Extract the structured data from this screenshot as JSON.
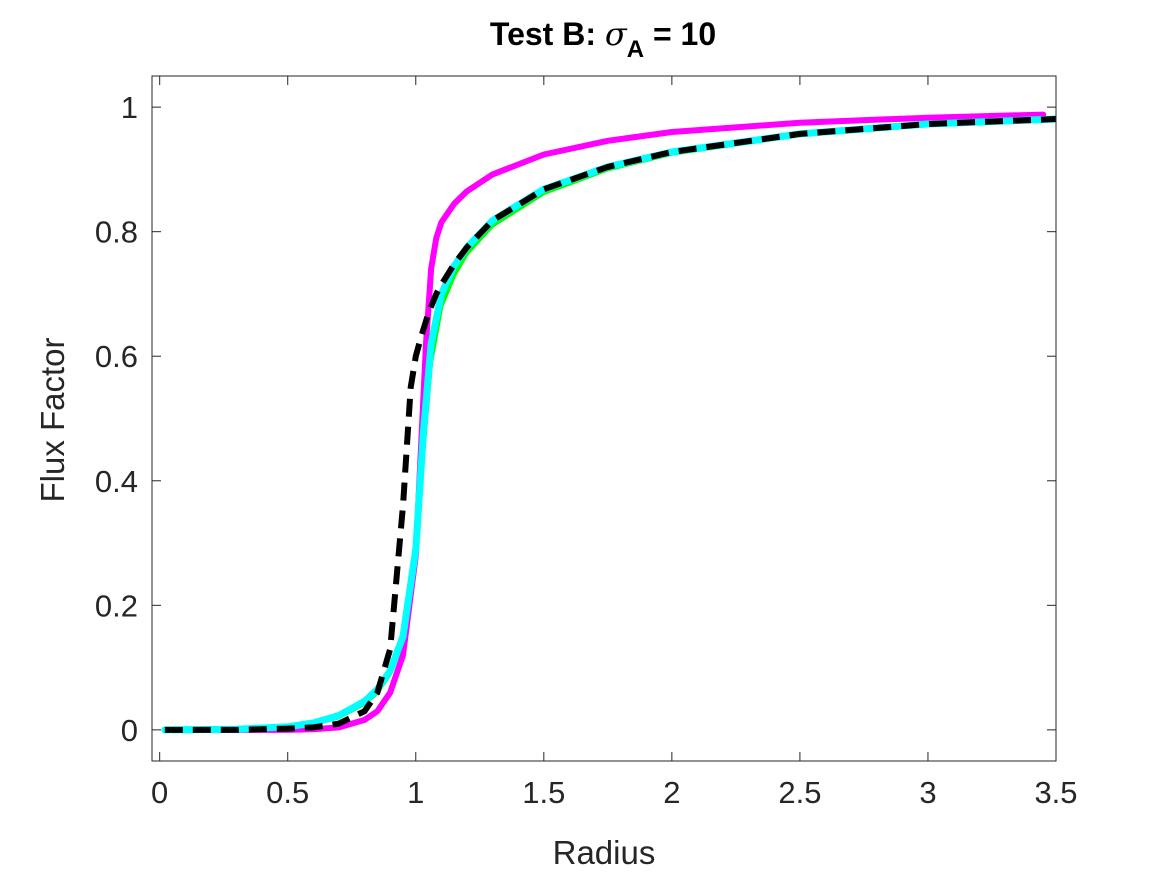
{
  "chart_data": {
    "type": "line",
    "title": {
      "prefix": "Test B: ",
      "symbol": "σ",
      "subscript": "A",
      "suffix": " = 10"
    },
    "xlabel": "Radius",
    "ylabel": "Flux Factor",
    "xlim": [
      -0.03,
      3.5
    ],
    "ylim": [
      -0.05,
      1.05
    ],
    "xticks": [
      0,
      0.5,
      1,
      1.5,
      2,
      2.5,
      3,
      3.5
    ],
    "xtick_labels": [
      "0",
      "0.5",
      "1",
      "1.5",
      "2",
      "2.5",
      "3",
      "3.5"
    ],
    "yticks": [
      0,
      0.2,
      0.4,
      0.6,
      0.8,
      1
    ],
    "ytick_labels": [
      "0",
      "0.2",
      "0.4",
      "0.6",
      "0.8",
      "1"
    ],
    "grid": false,
    "box": true,
    "series": [
      {
        "color": "#00ff00",
        "style": "solid",
        "x": [
          0.02,
          0.3,
          0.5,
          0.6,
          0.7,
          0.8,
          0.85,
          0.9,
          0.95,
          1.0,
          1.03,
          1.06,
          1.1,
          1.15,
          1.2,
          1.3,
          1.5,
          1.75,
          2.0,
          2.5,
          3.0,
          3.5
        ],
        "y": [
          0.0,
          0.001,
          0.004,
          0.009,
          0.02,
          0.042,
          0.06,
          0.09,
          0.14,
          0.27,
          0.45,
          0.59,
          0.68,
          0.73,
          0.765,
          0.81,
          0.862,
          0.9,
          0.925,
          0.955,
          0.972,
          0.98
        ]
      },
      {
        "color": "#ff00ff",
        "style": "solid",
        "x": [
          0.02,
          0.3,
          0.5,
          0.6,
          0.7,
          0.8,
          0.85,
          0.9,
          0.95,
          1.0,
          1.02,
          1.04,
          1.06,
          1.08,
          1.1,
          1.15,
          1.2,
          1.3,
          1.5,
          1.75,
          2.0,
          2.5,
          3.0,
          3.45
        ],
        "y": [
          0.0,
          0.0,
          0.0,
          0.001,
          0.004,
          0.016,
          0.03,
          0.06,
          0.12,
          0.28,
          0.45,
          0.62,
          0.74,
          0.79,
          0.815,
          0.845,
          0.865,
          0.892,
          0.924,
          0.946,
          0.96,
          0.975,
          0.983,
          0.988
        ]
      },
      {
        "color": "#00ffff",
        "style": "solid",
        "x": [
          0.02,
          0.3,
          0.5,
          0.6,
          0.7,
          0.8,
          0.85,
          0.9,
          0.95,
          1.0,
          1.03,
          1.06,
          1.1,
          1.15,
          1.2,
          1.3,
          1.5,
          1.75,
          2.0,
          2.5,
          3.0,
          3.5
        ],
        "y": [
          0.0,
          0.001,
          0.005,
          0.011,
          0.023,
          0.046,
          0.065,
          0.095,
          0.15,
          0.29,
          0.48,
          0.62,
          0.7,
          0.745,
          0.775,
          0.818,
          0.868,
          0.904,
          0.928,
          0.957,
          0.973,
          0.981
        ]
      },
      {
        "color": "#000000",
        "style": "dashed",
        "x": [
          0.02,
          0.3,
          0.5,
          0.6,
          0.7,
          0.8,
          0.85,
          0.9,
          0.95,
          0.98,
          1.0,
          1.02,
          1.05,
          1.08,
          1.1,
          1.15,
          1.2,
          1.3,
          1.5,
          1.75,
          2.0,
          2.5,
          3.0,
          3.5
        ],
        "y": [
          0.0,
          0.0,
          0.002,
          0.004,
          0.01,
          0.03,
          0.06,
          0.13,
          0.36,
          0.55,
          0.6,
          0.63,
          0.67,
          0.7,
          0.715,
          0.748,
          0.775,
          0.818,
          0.868,
          0.904,
          0.928,
          0.957,
          0.973,
          0.981
        ]
      }
    ]
  }
}
